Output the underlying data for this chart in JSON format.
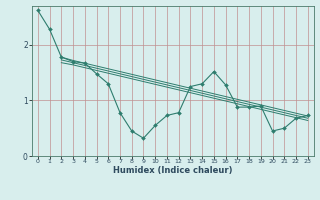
{
  "xlabel": "Humidex (Indice chaleur)",
  "bg_color": "#d8eeed",
  "line_color": "#2e7d6e",
  "grid_color_v": "#c8a8a8",
  "grid_color_h": "#c8a8a8",
  "xlim": [
    -0.5,
    23.5
  ],
  "ylim": [
    0,
    2.7
  ],
  "xticks": [
    0,
    1,
    2,
    3,
    4,
    5,
    6,
    7,
    8,
    9,
    10,
    11,
    12,
    13,
    14,
    15,
    16,
    17,
    18,
    19,
    20,
    21,
    22,
    23
  ],
  "yticks": [
    0,
    1,
    2
  ],
  "series": {
    "line1": {
      "x": [
        0,
        1,
        2,
        3,
        4,
        5,
        6,
        7,
        8,
        9,
        10,
        11,
        12,
        13,
        14,
        15,
        16,
        17,
        18,
        19,
        20,
        21,
        22,
        23
      ],
      "y": [
        2.62,
        2.28,
        1.78,
        1.7,
        1.67,
        1.48,
        1.3,
        0.78,
        0.45,
        0.32,
        0.55,
        0.73,
        0.78,
        1.25,
        1.3,
        1.52,
        1.28,
        0.88,
        0.88,
        0.9,
        0.45,
        0.5,
        0.68,
        0.73
      ]
    },
    "line2": {
      "x": [
        2,
        3,
        4,
        5,
        6,
        7,
        8,
        9,
        10,
        11,
        12,
        13,
        14,
        15,
        16,
        17,
        18,
        19,
        20,
        21,
        22,
        23
      ],
      "y": [
        1.78,
        1.72,
        1.67,
        1.62,
        1.57,
        1.52,
        1.47,
        1.42,
        1.37,
        1.32,
        1.27,
        1.22,
        1.17,
        1.12,
        1.07,
        1.02,
        0.97,
        0.92,
        0.87,
        0.82,
        0.77,
        0.72
      ]
    },
    "line3": {
      "x": [
        2,
        3,
        4,
        5,
        6,
        7,
        8,
        9,
        10,
        11,
        12,
        13,
        14,
        15,
        16,
        17,
        18,
        19,
        20,
        21,
        22,
        23
      ],
      "y": [
        1.73,
        1.68,
        1.63,
        1.58,
        1.53,
        1.48,
        1.43,
        1.38,
        1.33,
        1.28,
        1.23,
        1.18,
        1.13,
        1.08,
        1.03,
        0.98,
        0.93,
        0.88,
        0.83,
        0.78,
        0.73,
        0.68
      ]
    },
    "line4": {
      "x": [
        2,
        3,
        4,
        5,
        6,
        7,
        8,
        9,
        10,
        11,
        12,
        13,
        14,
        15,
        16,
        17,
        18,
        19,
        20,
        21,
        22,
        23
      ],
      "y": [
        1.68,
        1.64,
        1.59,
        1.54,
        1.49,
        1.44,
        1.39,
        1.34,
        1.29,
        1.24,
        1.19,
        1.14,
        1.09,
        1.04,
        0.99,
        0.94,
        0.89,
        0.84,
        0.79,
        0.74,
        0.69,
        0.64
      ]
    }
  }
}
